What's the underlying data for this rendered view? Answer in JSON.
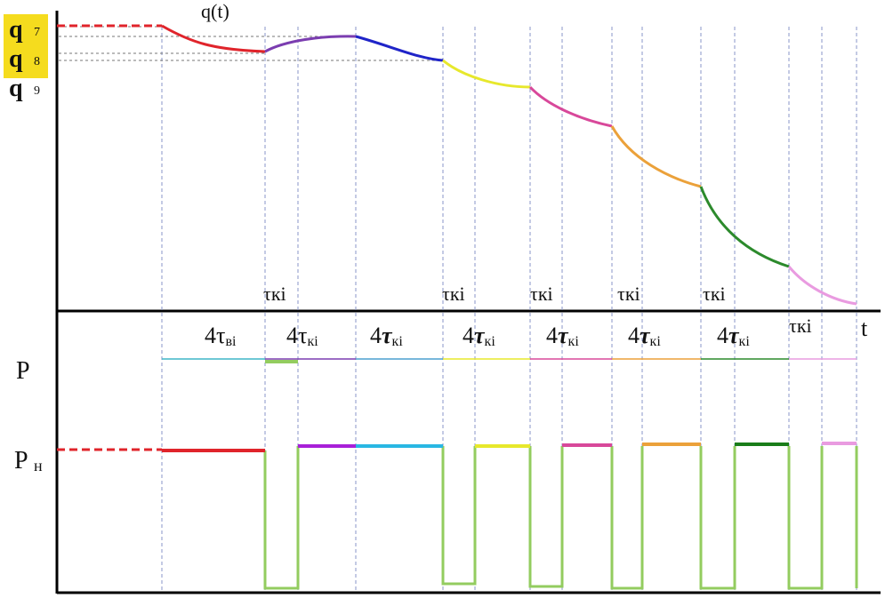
{
  "top_curve_label": "q(t)",
  "y_labels": [
    {
      "main": "q",
      "sub": "7",
      "highlight": true
    },
    {
      "main": "q",
      "sub": "8",
      "highlight": true
    },
    {
      "main": "q",
      "sub": "9",
      "highlight": false
    }
  ],
  "x_axis_label": "t",
  "tau_k_label": "τкі",
  "interval_labels": [
    {
      "coef": "4",
      "sym": "τ",
      "sub": "вi",
      "italic": false
    },
    {
      "coef": "4",
      "sym": "τ",
      "sub": "кі",
      "italic": false
    },
    {
      "coef": "4",
      "sym": "τ",
      "sub": "кі",
      "italic": true
    },
    {
      "coef": "4",
      "sym": "τ",
      "sub": "кі",
      "italic": true
    },
    {
      "coef": "4",
      "sym": "τ",
      "sub": "кі",
      "italic": true
    },
    {
      "coef": "4",
      "sym": "τ",
      "sub": "кі",
      "italic": true
    },
    {
      "coef": "4",
      "sym": "τ",
      "sub": "кі",
      "italic": true
    }
  ],
  "power_labels": [
    {
      "main": "P",
      "sub": ""
    },
    {
      "main": "P",
      "sub": "н"
    }
  ],
  "colors": {
    "axis": "#000000",
    "grid": "#8a96c8",
    "pulse": "#93cc5f",
    "highlight": "#f5dc1e",
    "segments": [
      "#e0242b",
      "#7b3db0",
      "#1f24c8",
      "#e7e82c",
      "#d8489a",
      "#eba13a",
      "#2c8a2c",
      "#e99be0"
    ],
    "power_levels": [
      "#e0242b",
      "#a81fd8",
      "#29b7e3",
      "#e7e82c",
      "#d8489a",
      "#eba13a",
      "#1a7d1a",
      "#e99be0"
    ]
  }
}
